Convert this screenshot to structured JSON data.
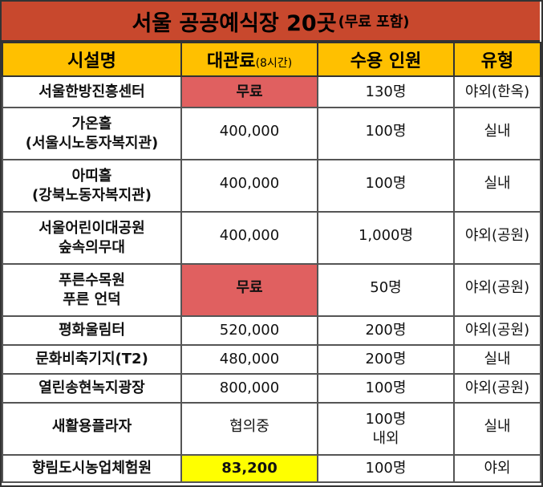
{
  "title": {
    "main": "서울 공공예식장 20곳",
    "sub": "(무료 포함)"
  },
  "headers": {
    "name": "시설명",
    "fee": "대관료",
    "fee_note": "(8시간)",
    "capacity": "수용 인원",
    "type": "유형"
  },
  "rows": [
    {
      "name_lines": [
        "서울한방진흥센터"
      ],
      "fee": "무료",
      "capacity": "130명",
      "type": "야외(한옥)"
    },
    {
      "name_lines": [
        "가온홀",
        "(서울시노동자복지관)"
      ],
      "fee": "400,000",
      "capacity": "100명",
      "type": "실내"
    },
    {
      "name_lines": [
        "아띠홀",
        "(강북노동자복지관)"
      ],
      "fee": "400,000",
      "capacity": "100명",
      "type": "실내"
    },
    {
      "name_lines": [
        "서울어린이대공원",
        "숲속의무대"
      ],
      "fee": "400,000",
      "capacity": "1,000명",
      "type": "야외(공원)"
    },
    {
      "name_lines": [
        "푸른수목원",
        "푸른 언덕"
      ],
      "fee": "무료",
      "capacity": "50명",
      "type": "야외(공원)"
    },
    {
      "name_lines": [
        "평화울림터"
      ],
      "fee": "520,000",
      "capacity": "200명",
      "type": "야외(공원)"
    },
    {
      "name_lines": [
        "문화비축기지(T2)"
      ],
      "fee": "480,000",
      "capacity": "200명",
      "type": "실내"
    },
    {
      "name_lines": [
        "열린송현녹지광장"
      ],
      "fee": "800,000",
      "capacity": "100명",
      "type": "야외(공원)"
    },
    {
      "name_lines": [
        "새활용플라자"
      ],
      "fee": "협의중",
      "capacity_lines": [
        "100명",
        "내외"
      ],
      "type": "실내"
    },
    {
      "name_lines": [
        "향림도시농업체험원"
      ],
      "fee": "83,200",
      "capacity": "100명",
      "type": "야외"
    }
  ]
}
